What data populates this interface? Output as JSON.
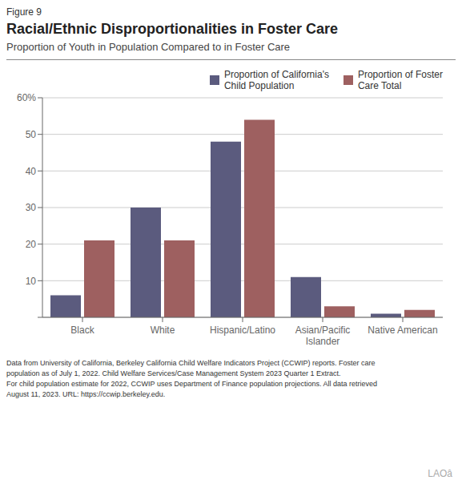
{
  "chart_data": {
    "type": "bar",
    "title": "Racial/Ethnic Disproportionalities in Foster Care",
    "subtitle": "Proportion of Youth in Population Compared to in Foster Care",
    "annotations": [
      "Figure 9",
      "Data from University of California, Berkeley California Child Welfare Indicators Project (CCWIP) reports. Foster care",
      "population as of July 1, 2022. Child Welfare Services/Case Management System 2023 Quarter 1 Extract.",
      "For child population estimate for 2022, CCWIP uses Department of Finance population projections. All data retrieved",
      "August 11, 2023. URL: https://ccwip.berkeley.edu.",
      "LAOâ"
    ],
    "categories": [
      "Black",
      "White",
      "Hispanic/Latino",
      "Asian/Pacific\nIslander",
      "Native American"
    ],
    "series": [
      {
        "name": "Proportion of California's\nChild Population",
        "color": "#5b5b7e",
        "values": [
          6,
          30,
          48,
          11,
          1
        ]
      },
      {
        "name": "Proportion of Foster\nCare Total",
        "color": "#9e6060",
        "values": [
          21,
          21,
          54,
          3,
          2
        ]
      }
    ],
    "ylim": [
      0,
      60
    ],
    "yticks": [
      {
        "value": 0,
        "label": ""
      },
      10,
      20,
      30,
      40,
      50,
      {
        "value": 60,
        "label": "60%"
      }
    ],
    "grid": true,
    "legend": "upper right"
  }
}
